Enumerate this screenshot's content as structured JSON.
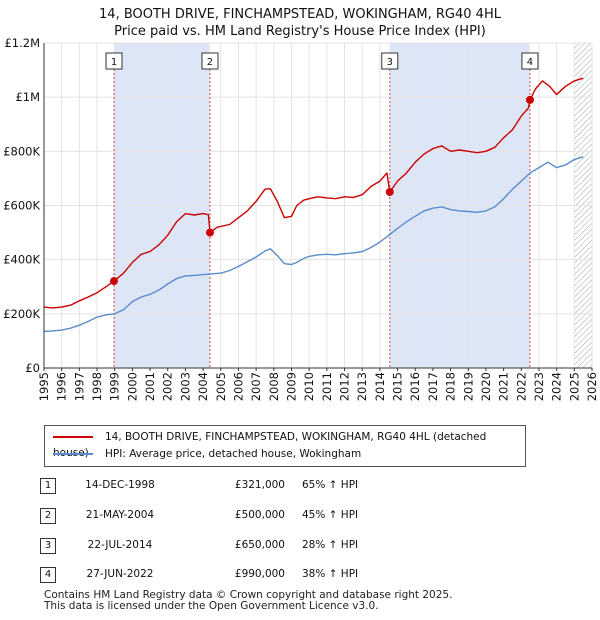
{
  "title_line1": "14, BOOTH DRIVE, FINCHAMPSTEAD, WOKINGHAM, RG40 4HL",
  "title_line2": "Price paid vs. HM Land Registry's House Price Index (HPI)",
  "colors": {
    "property": "#cc0000",
    "hpi": "#5b8ccc",
    "shade": "#dde6f7",
    "marker_line": "#cc0000"
  },
  "chart_data": {
    "type": "line",
    "xlim": [
      1995,
      2026
    ],
    "ylim": [
      0,
      1200000
    ],
    "x_ticks": [
      "1995",
      "1996",
      "1997",
      "1998",
      "1999",
      "2000",
      "2001",
      "2002",
      "2003",
      "2004",
      "2005",
      "2006",
      "2007",
      "2008",
      "2009",
      "2010",
      "2011",
      "2012",
      "2013",
      "2014",
      "2015",
      "2016",
      "2017",
      "2018",
      "2019",
      "2020",
      "2021",
      "2022",
      "2023",
      "2024",
      "2025",
      "2026"
    ],
    "y_ticks": [
      {
        "value": 0,
        "label": "£0"
      },
      {
        "value": 200000,
        "label": "£200K"
      },
      {
        "value": 400000,
        "label": "£400K"
      },
      {
        "value": 600000,
        "label": "£600K"
      },
      {
        "value": 800000,
        "label": "£800K"
      },
      {
        "value": 1000000,
        "label": "£1M"
      },
      {
        "value": 1200000,
        "label": "£1.2M"
      }
    ],
    "shaded_periods": [
      [
        1998.96,
        2004.39
      ],
      [
        2014.56,
        2022.49
      ]
    ],
    "hatch_from": 2025.0,
    "series": [
      {
        "name": "property",
        "x": [
          1995.0,
          1995.5,
          1996.0,
          1996.5,
          1997.0,
          1997.5,
          1998.0,
          1998.5,
          1998.96,
          1999.5,
          2000.0,
          2000.5,
          2001.0,
          2001.5,
          2002.0,
          2002.5,
          2003.0,
          2003.5,
          2004.0,
          2004.3,
          2004.39,
          2004.8,
          2005.5,
          2006.0,
          2006.5,
          2007.0,
          2007.5,
          2007.8,
          2008.2,
          2008.6,
          2009.0,
          2009.3,
          2009.7,
          2010.0,
          2010.5,
          2011.0,
          2011.5,
          2012.0,
          2012.5,
          2013.0,
          2013.5,
          2014.0,
          2014.4,
          2014.56,
          2015.0,
          2015.5,
          2016.0,
          2016.5,
          2017.0,
          2017.5,
          2018.0,
          2018.5,
          2019.0,
          2019.5,
          2020.0,
          2020.5,
          2021.0,
          2021.5,
          2022.0,
          2022.4,
          2022.49,
          2022.8,
          2023.2,
          2023.6,
          2024.0,
          2024.5,
          2025.0,
          2025.5
        ],
        "values": [
          225000,
          222000,
          225000,
          232000,
          248000,
          262000,
          278000,
          300000,
          321000,
          350000,
          390000,
          420000,
          430000,
          455000,
          490000,
          540000,
          570000,
          565000,
          570000,
          566000,
          500000,
          520000,
          530000,
          555000,
          580000,
          615000,
          660000,
          662000,
          615000,
          555000,
          560000,
          600000,
          620000,
          625000,
          632000,
          628000,
          625000,
          632000,
          630000,
          640000,
          670000,
          690000,
          720000,
          650000,
          690000,
          720000,
          760000,
          790000,
          810000,
          820000,
          800000,
          805000,
          800000,
          795000,
          800000,
          815000,
          850000,
          880000,
          930000,
          960000,
          990000,
          1030000,
          1060000,
          1040000,
          1010000,
          1040000,
          1060000,
          1070000
        ]
      },
      {
        "name": "hpi",
        "x": [
          1995.0,
          1995.5,
          1996.0,
          1996.5,
          1997.0,
          1997.5,
          1998.0,
          1998.5,
          1999.0,
          1999.5,
          2000.0,
          2000.5,
          2001.0,
          2001.5,
          2002.0,
          2002.5,
          2003.0,
          2003.5,
          2004.0,
          2004.5,
          2005.0,
          2005.5,
          2006.0,
          2006.5,
          2007.0,
          2007.5,
          2007.8,
          2008.2,
          2008.6,
          2009.0,
          2009.3,
          2009.7,
          2010.0,
          2010.5,
          2011.0,
          2011.5,
          2012.0,
          2012.5,
          2013.0,
          2013.5,
          2014.0,
          2014.5,
          2015.0,
          2015.5,
          2016.0,
          2016.5,
          2017.0,
          2017.5,
          2018.0,
          2018.5,
          2019.0,
          2019.5,
          2020.0,
          2020.5,
          2021.0,
          2021.5,
          2022.0,
          2022.5,
          2023.0,
          2023.5,
          2024.0,
          2024.5,
          2025.0,
          2025.5
        ],
        "values": [
          135000,
          137000,
          140000,
          147000,
          158000,
          172000,
          188000,
          196000,
          200000,
          215000,
          245000,
          262000,
          272000,
          288000,
          310000,
          330000,
          340000,
          342000,
          345000,
          348000,
          350000,
          360000,
          375000,
          392000,
          410000,
          432000,
          440000,
          415000,
          385000,
          382000,
          390000,
          405000,
          412000,
          418000,
          420000,
          418000,
          422000,
          425000,
          430000,
          445000,
          465000,
          490000,
          515000,
          540000,
          560000,
          580000,
          590000,
          595000,
          585000,
          580000,
          578000,
          575000,
          580000,
          595000,
          625000,
          660000,
          690000,
          720000,
          740000,
          760000,
          740000,
          750000,
          770000,
          780000
        ]
      }
    ],
    "markers": [
      {
        "n": "1",
        "x": 1998.96,
        "value": 321000
      },
      {
        "n": "2",
        "x": 2004.39,
        "value": 500000
      },
      {
        "n": "3",
        "x": 2014.56,
        "value": 650000
      },
      {
        "n": "4",
        "x": 2022.49,
        "value": 990000
      }
    ]
  },
  "legend": {
    "property_label": "14, BOOTH DRIVE, FINCHAMPSTEAD, WOKINGHAM, RG40 4HL (detached house)",
    "hpi_label": "HPI: Average price, detached house, Wokingham"
  },
  "sales": [
    {
      "n": "1",
      "date": "14-DEC-1998",
      "price": "£321,000",
      "hpi": "65% ↑ HPI"
    },
    {
      "n": "2",
      "date": "21-MAY-2004",
      "price": "£500,000",
      "hpi": "45% ↑ HPI"
    },
    {
      "n": "3",
      "date": "22-JUL-2014",
      "price": "£650,000",
      "hpi": "28% ↑ HPI"
    },
    {
      "n": "4",
      "date": "27-JUN-2022",
      "price": "£990,000",
      "hpi": "38% ↑ HPI"
    }
  ],
  "footer": {
    "line1": "Contains HM Land Registry data © Crown copyright and database right 2025.",
    "line2": "This data is licensed under the Open Government Licence v3.0."
  }
}
